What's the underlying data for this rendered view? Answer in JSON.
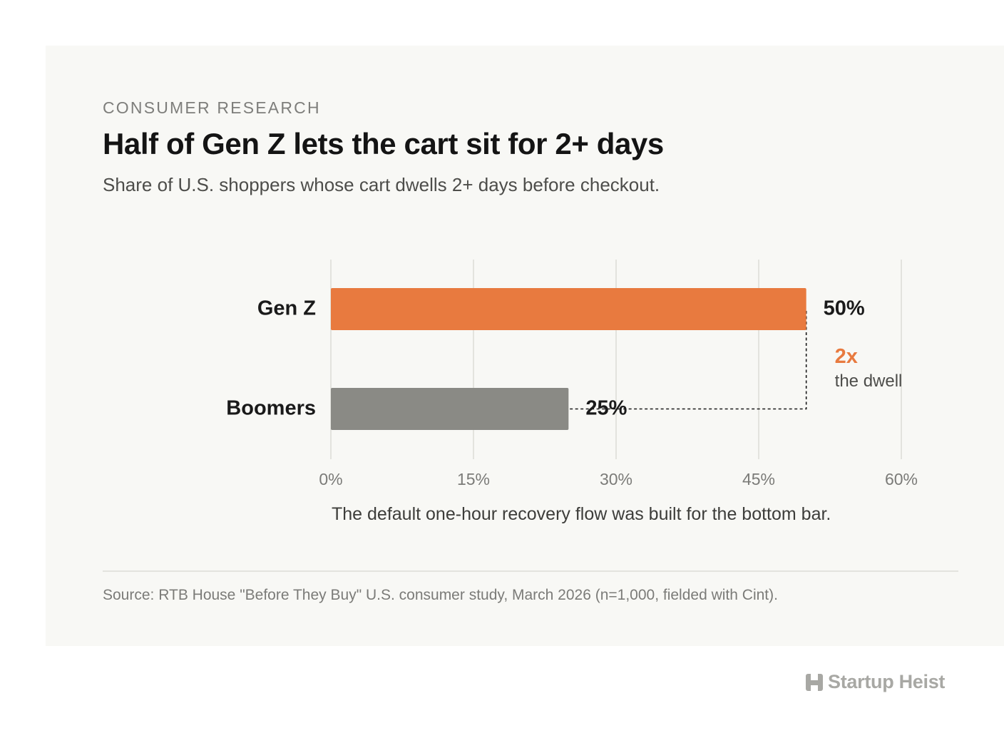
{
  "header": {
    "kicker": "CONSUMER RESEARCH",
    "title": "Half of Gen Z lets the cart sit for 2+ days",
    "subtitle": "Share of U.S. shoppers whose cart dwells 2+ days before checkout."
  },
  "chart_data": {
    "type": "bar",
    "orientation": "horizontal",
    "categories": [
      "Gen Z",
      "Boomers"
    ],
    "values": [
      50,
      25
    ],
    "value_labels": [
      "50%",
      "25%"
    ],
    "bar_colors": [
      "#e87a3f",
      "#8a8a85"
    ],
    "x_ticks": [
      "0%",
      "15%",
      "30%",
      "45%",
      "60%"
    ],
    "x_tick_values": [
      0,
      15,
      30,
      45,
      60
    ],
    "xlim": [
      0,
      60
    ],
    "grid": true,
    "annotation": {
      "value": "2x",
      "label": "the dwell",
      "color": "#e87a3f"
    },
    "caption": "The default one-hour recovery flow was built for the bottom bar."
  },
  "footer": {
    "source": "Source: RTB House \"Before They Buy\" U.S. consumer study, March 2026 (n=1,000, fielded with Cint)."
  },
  "brand": {
    "name": "Startup Heist",
    "icon": "startup-heist-logo-icon"
  }
}
